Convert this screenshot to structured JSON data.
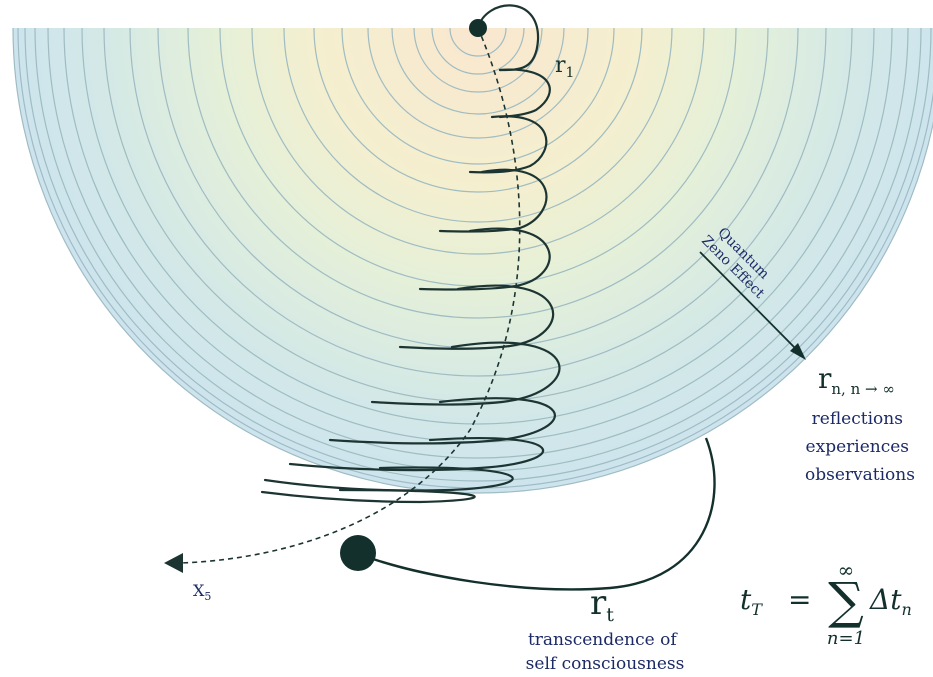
{
  "labels": {
    "r1_main": "r",
    "r1_sub": "1",
    "rn_main": "r",
    "rn_sub": "n, n → ∞",
    "rn_desc": [
      "reflections",
      "experiences",
      "observations"
    ],
    "rt_main": "r",
    "rt_sub": "t",
    "rt_desc": [
      "transcendence of",
      "self consciousness"
    ],
    "x5_main": "X",
    "x5_sub": "5",
    "arrow_label": [
      "Quantum",
      "Zeno Effect"
    ]
  },
  "formula": {
    "lhs_var": "t",
    "lhs_sub": "T",
    "equals": "=",
    "sum_top": "∞",
    "sum_symbol": "∑",
    "sum_bottom": "n=1",
    "term": "Δt",
    "term_sub": "n"
  },
  "colors": {
    "ring_stroke": "#9fbcc3",
    "arc_dark": "#1d3532",
    "center_warm": "#f9e7cf",
    "mid_yellow": "#f3f2cf",
    "outer_blue": "#cfe5ee",
    "label_blue": "#1c2a66"
  }
}
